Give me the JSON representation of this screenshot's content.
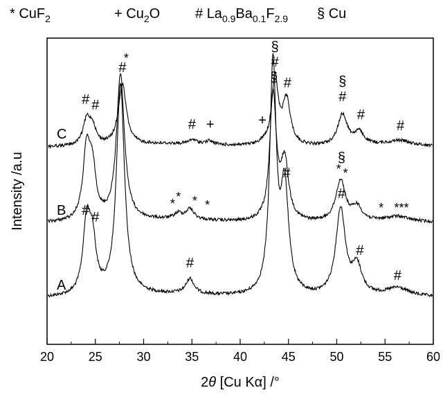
{
  "legend": [
    {
      "symbol": "*",
      "text": "CuF",
      "sub": "2"
    },
    {
      "symbol": "+",
      "text": "Cu",
      "sub": "2",
      "after": "O"
    },
    {
      "symbol": "#",
      "parts": [
        [
          "La",
          ""
        ],
        [
          "0.9",
          "sub"
        ],
        [
          "Ba",
          ""
        ],
        [
          "0.1",
          "sub"
        ],
        [
          "F",
          ""
        ],
        [
          "2.9",
          "sub"
        ]
      ]
    },
    {
      "symbol": "§",
      "text": "Cu"
    }
  ],
  "chart_data": {
    "type": "line",
    "xlabel_parts": [
      [
        "2",
        ""
      ],
      [
        "θ",
        "italic"
      ],
      [
        " [Cu K",
        ""
      ],
      [
        "α",
        ""
      ],
      [
        "] /°",
        ""
      ]
    ],
    "ylabel": "Intensity /a.u",
    "xlim": [
      20,
      60
    ],
    "xticks": [
      20,
      25,
      30,
      35,
      40,
      45,
      50,
      55,
      60
    ],
    "grid": false,
    "series": [
      {
        "name": "A",
        "baseline": 430,
        "peaks": [
          [
            24.1,
            100,
            0.45
          ],
          [
            24.7,
            70,
            0.45
          ],
          [
            27.6,
            305,
            0.5
          ],
          [
            34.8,
            22,
            0.5
          ],
          [
            43.4,
            330,
            0.4
          ],
          [
            44.6,
            150,
            0.5
          ],
          [
            50.4,
            125,
            0.6
          ],
          [
            52.1,
            40,
            0.6
          ],
          [
            56.3,
            10,
            1.2
          ]
        ],
        "annotations": [
          {
            "text": "#",
            "x": 24.0,
            "y": 116
          },
          {
            "text": "#",
            "x": 25.0,
            "y": 106
          },
          {
            "text": "#",
            "x": 34.8,
            "y": 40
          },
          {
            "text": "#",
            "x": 44.8,
            "y": 170
          },
          {
            "text": "#",
            "x": 50.5,
            "y": 140
          },
          {
            "text": "#",
            "x": 52.4,
            "y": 58
          },
          {
            "text": "#",
            "x": 56.3,
            "y": 22
          }
        ]
      },
      {
        "name": "B",
        "baseline": 322,
        "peaks": [
          [
            24.1,
            98,
            0.45
          ],
          [
            24.7,
            65,
            0.45
          ],
          [
            27.6,
            210,
            0.5
          ],
          [
            33.6,
            8,
            0.5
          ],
          [
            34.8,
            15,
            0.5
          ],
          [
            43.4,
            182,
            0.4
          ],
          [
            44.6,
            84,
            0.5
          ],
          [
            50.4,
            60,
            0.6
          ],
          [
            52.1,
            20,
            0.6
          ],
          [
            56.3,
            6,
            1.2
          ]
        ],
        "annotations": [
          {
            "text": "*",
            "x": 28.2,
            "y": 228
          },
          {
            "text": "*",
            "x": 33.0,
            "y": 18
          },
          {
            "text": "*",
            "x": 33.6,
            "y": 28
          },
          {
            "text": "*",
            "x": 35.3,
            "y": 22
          },
          {
            "text": "*",
            "x": 36.6,
            "y": 16
          },
          {
            "text": "§",
            "x": 43.5,
            "y": 200
          },
          {
            "text": "§",
            "x": 50.5,
            "y": 84
          },
          {
            "text": "*",
            "x": 50.2,
            "y": 68
          },
          {
            "text": "*",
            "x": 50.9,
            "y": 62
          },
          {
            "text": "*",
            "x": 54.6,
            "y": 12
          },
          {
            "text": "***",
            "x": 56.7,
            "y": 12
          }
        ]
      },
      {
        "name": "C",
        "baseline": 212,
        "peaks": [
          [
            24.1,
            35,
            0.45
          ],
          [
            24.7,
            25,
            0.45
          ],
          [
            27.8,
            88,
            0.5
          ],
          [
            35.1,
            6,
            0.5
          ],
          [
            36.8,
            5,
            0.5
          ],
          [
            42.4,
            3,
            0.5
          ],
          [
            43.6,
            96,
            0.4
          ],
          [
            44.8,
            65,
            0.5
          ],
          [
            50.6,
            45,
            0.6
          ],
          [
            52.3,
            18,
            0.6
          ],
          [
            56.5,
            6,
            1.2
          ]
        ],
        "annotations": [
          {
            "text": "#",
            "x": 24.0,
            "y": 58
          },
          {
            "text": "#",
            "x": 25.0,
            "y": 50
          },
          {
            "text": "#",
            "x": 27.8,
            "y": 104
          },
          {
            "text": "#",
            "x": 35.0,
            "y": 22
          },
          {
            "text": "+",
            "x": 36.9,
            "y": 22
          },
          {
            "text": "+",
            "x": 42.3,
            "y": 28
          },
          {
            "text": "#",
            "x": 43.6,
            "y": 112
          },
          {
            "text": "§",
            "x": 43.6,
            "y": 134
          },
          {
            "text": "#",
            "x": 44.9,
            "y": 82
          },
          {
            "text": "#",
            "x": 50.6,
            "y": 62
          },
          {
            "text": "§",
            "x": 50.6,
            "y": 84
          },
          {
            "text": "#",
            "x": 52.5,
            "y": 36
          },
          {
            "text": "#",
            "x": 56.6,
            "y": 20
          }
        ]
      }
    ]
  }
}
